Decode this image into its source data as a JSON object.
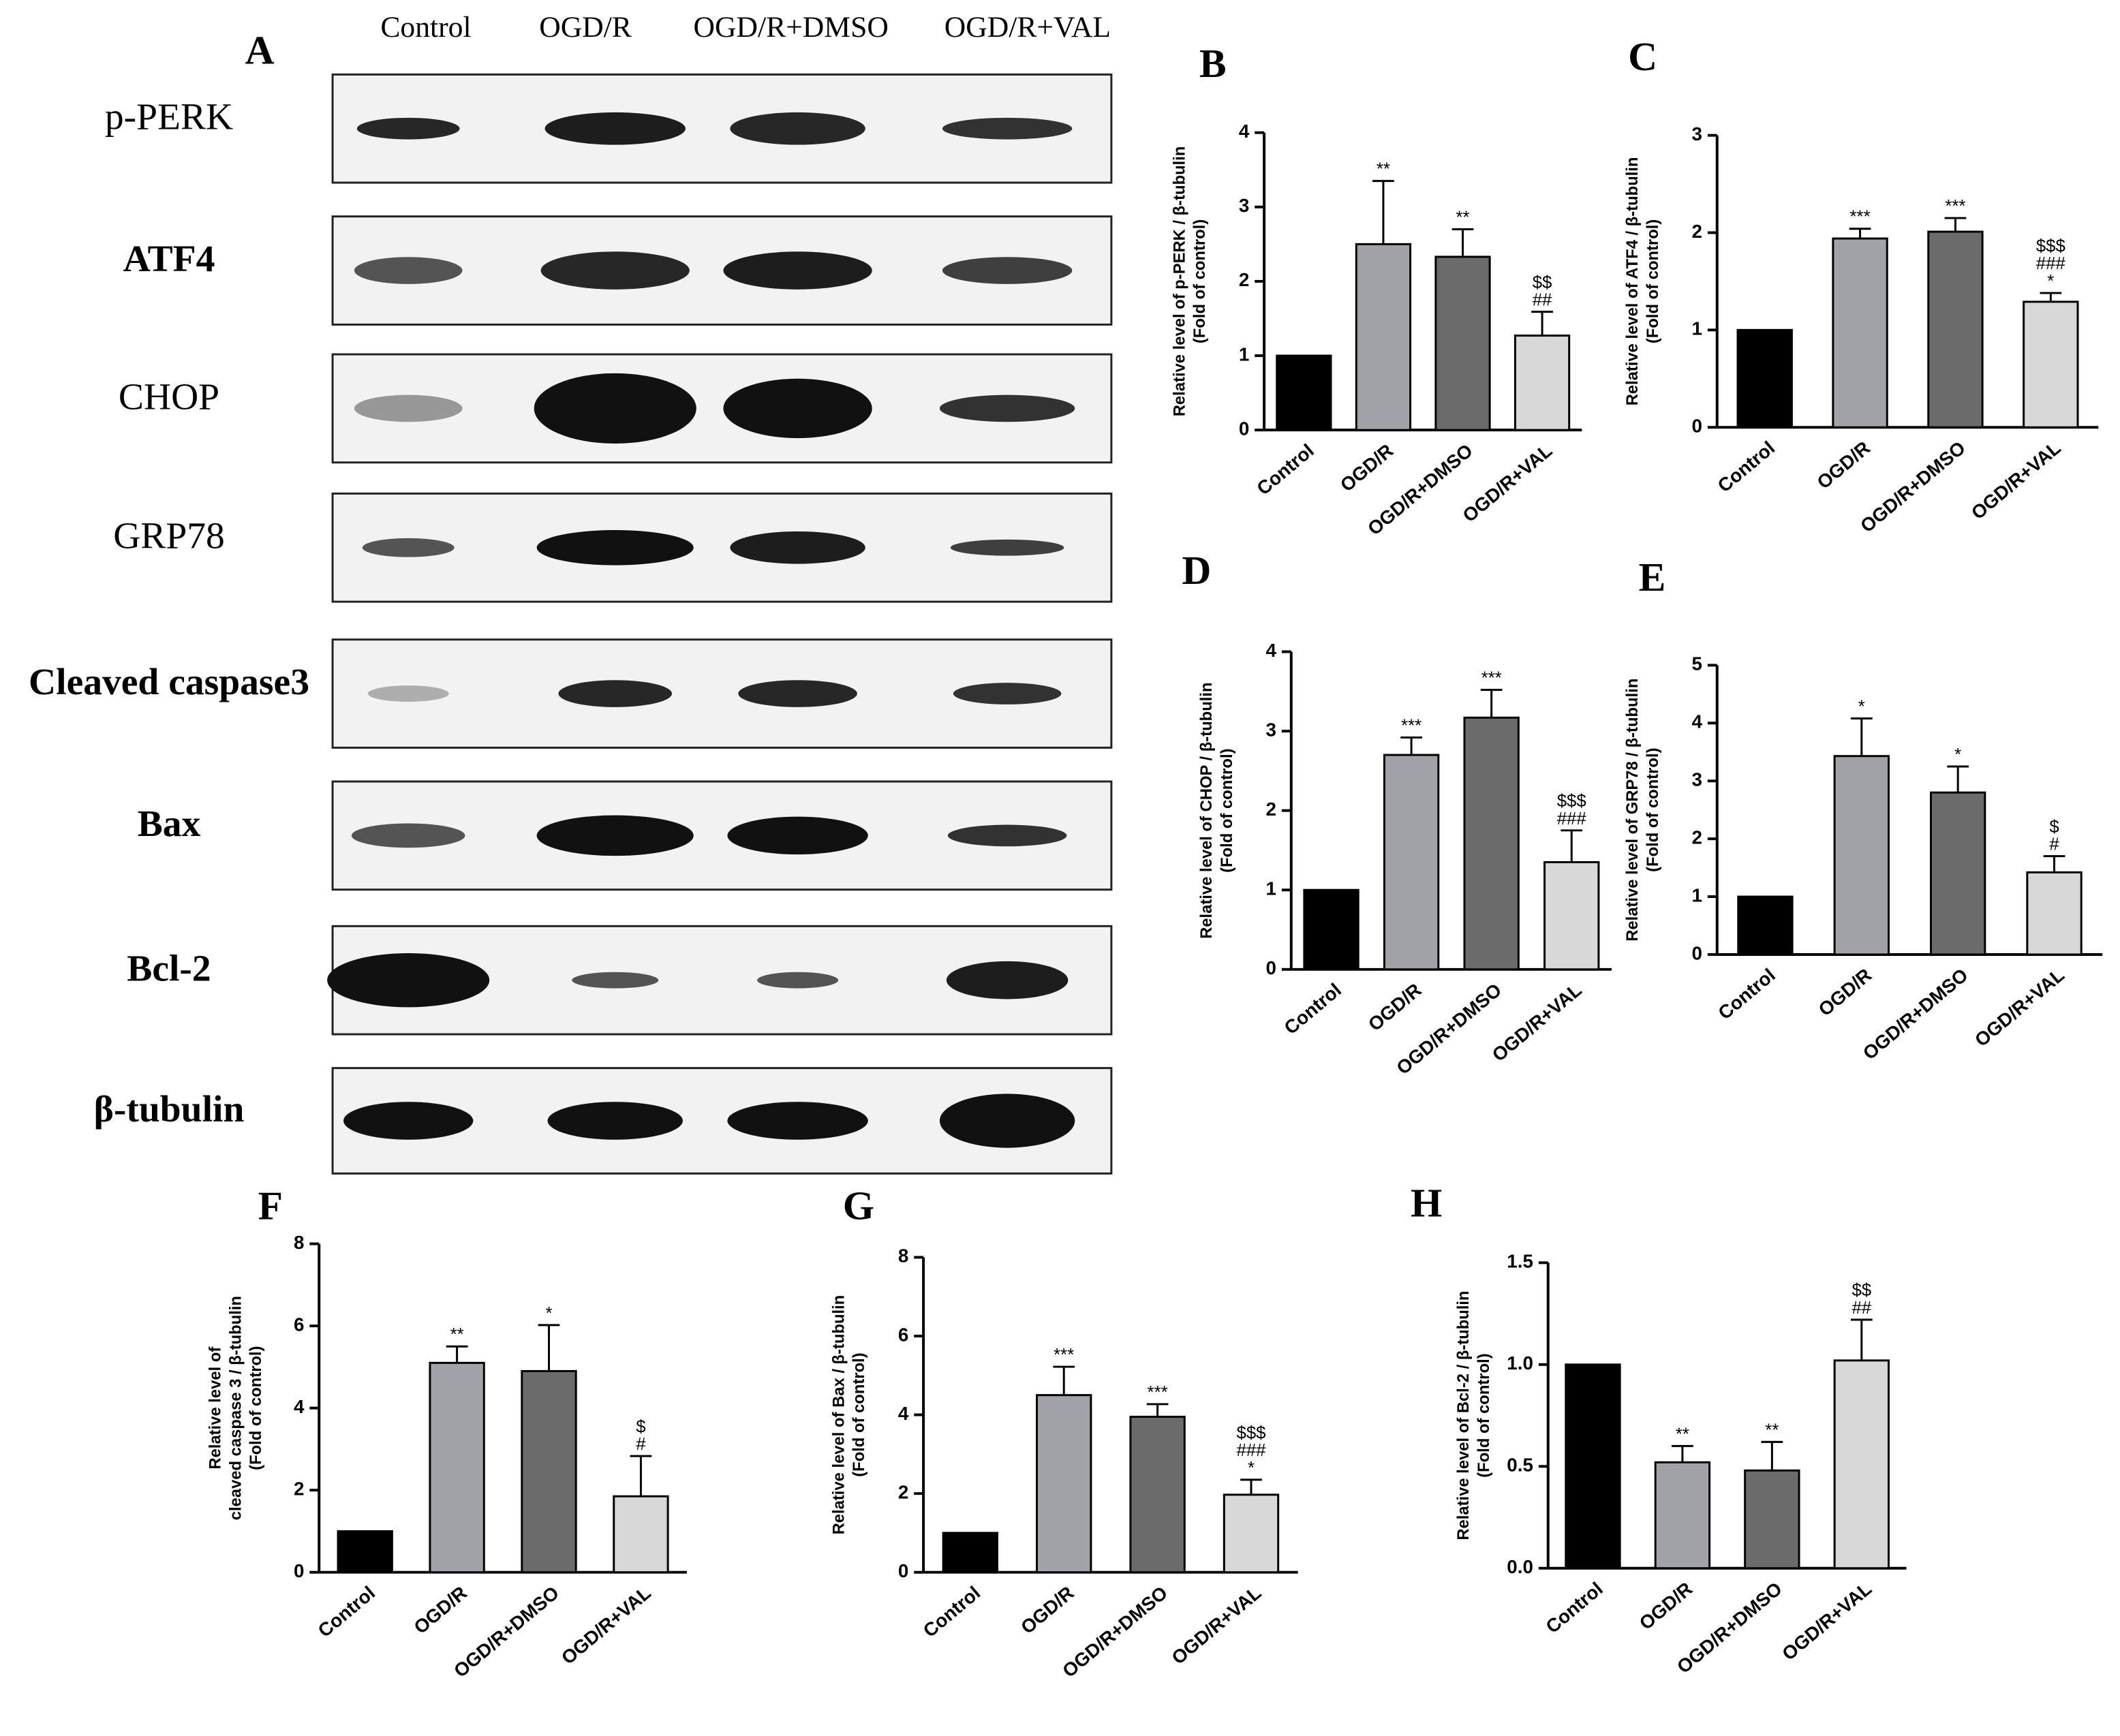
{
  "blot": {
    "panel_label": "A",
    "lanes": [
      "Control",
      "OGD/R",
      "OGD/R+DMSO",
      "OGD/R+VAL"
    ],
    "proteins": [
      "p-PERK",
      "ATF4",
      "CHOP",
      "GRP78",
      "Cleaved caspase3",
      "Bax",
      "Bcl-2",
      "β-tubulin"
    ]
  },
  "chart_data": [
    {
      "type": "bar",
      "panel_label": "B",
      "ylabel": [
        "Relative level of p-PERK / β-tubulin",
        "(Fold of control)"
      ],
      "categories": [
        "Control",
        "OGD/R",
        "OGD/R+DMSO",
        "OGD/R+VAL"
      ],
      "values": [
        1,
        2.5,
        2.33,
        1.27
      ],
      "errors": [
        0,
        0.85,
        0.37,
        0.32
      ],
      "annotations": [
        [],
        [
          "**"
        ],
        [
          "**"
        ],
        [
          "$$",
          "##"
        ]
      ],
      "colors": [
        "#000000",
        "#a1a3a8",
        "#6b6b6b",
        "#d8d8d8"
      ],
      "ylim": [
        0,
        4
      ],
      "yticks": [
        0,
        1,
        2,
        3,
        4
      ]
    },
    {
      "type": "bar",
      "panel_label": "C",
      "ylabel": [
        "Relative level of ATF4 / β-tubulin",
        "(Fold of control)"
      ],
      "categories": [
        "Control",
        "OGD/R",
        "OGD/R+DMSO",
        "OGD/R+VAL"
      ],
      "values": [
        1,
        1.94,
        2.01,
        1.29
      ],
      "errors": [
        0,
        0.1,
        0.14,
        0.09
      ],
      "annotations": [
        [],
        [
          "***"
        ],
        [
          "***"
        ],
        [
          "$$$",
          "###",
          "*"
        ]
      ],
      "colors": [
        "#000000",
        "#a1a3a8",
        "#6b6b6b",
        "#d8d8d8"
      ],
      "ylim": [
        0,
        3
      ],
      "yticks": [
        0,
        1,
        2,
        3
      ]
    },
    {
      "type": "bar",
      "panel_label": "D",
      "ylabel": [
        "Relative level of CHOP / β-tubulin",
        "(Fold of control)"
      ],
      "categories": [
        "Control",
        "OGD/R",
        "OGD/R+DMSO",
        "OGD/R+VAL"
      ],
      "values": [
        1,
        2.7,
        3.17,
        1.35
      ],
      "errors": [
        0,
        0.22,
        0.35,
        0.4
      ],
      "annotations": [
        [],
        [
          "***"
        ],
        [
          "***"
        ],
        [
          "$$$",
          "###"
        ]
      ],
      "colors": [
        "#000000",
        "#a1a3a8",
        "#6b6b6b",
        "#d8d8d8"
      ],
      "ylim": [
        0,
        4
      ],
      "yticks": [
        0,
        1,
        2,
        3,
        4
      ]
    },
    {
      "type": "bar",
      "panel_label": "E",
      "ylabel": [
        "Relative level of GRP78 / β-tubulin",
        "(Fold of control)"
      ],
      "categories": [
        "Control",
        "OGD/R",
        "OGD/R+DMSO",
        "OGD/R+VAL"
      ],
      "values": [
        1,
        3.43,
        2.8,
        1.42
      ],
      "errors": [
        0,
        0.65,
        0.45,
        0.28
      ],
      "annotations": [
        [],
        [
          "*"
        ],
        [
          "*"
        ],
        [
          "$",
          "#"
        ]
      ],
      "colors": [
        "#000000",
        "#a1a3a8",
        "#6b6b6b",
        "#d8d8d8"
      ],
      "ylim": [
        0,
        5
      ],
      "yticks": [
        0,
        1,
        2,
        3,
        4,
        5
      ]
    },
    {
      "type": "bar",
      "panel_label": "F",
      "ylabel": [
        "Relative level of",
        "cleaved caspase 3 / β-tubulin",
        "(Fold of control)"
      ],
      "categories": [
        "Control",
        "OGD/R",
        "OGD/R+DMSO",
        "OGD/R+VAL"
      ],
      "values": [
        1,
        5.1,
        4.9,
        1.85
      ],
      "errors": [
        0,
        0.4,
        1.12,
        0.98
      ],
      "annotations": [
        [],
        [
          "**"
        ],
        [
          "*"
        ],
        [
          "$",
          "#"
        ]
      ],
      "colors": [
        "#000000",
        "#a1a3a8",
        "#6b6b6b",
        "#d8d8d8"
      ],
      "ylim": [
        0,
        8
      ],
      "yticks": [
        0,
        2,
        4,
        6,
        8
      ]
    },
    {
      "type": "bar",
      "panel_label": "G",
      "ylabel": [
        "Relative level of Bax / β-tubulin",
        "(Fold of control)"
      ],
      "categories": [
        "Control",
        "OGD/R",
        "OGD/R+DMSO",
        "OGD/R+VAL"
      ],
      "values": [
        1,
        4.5,
        3.95,
        1.97
      ],
      "errors": [
        0,
        0.72,
        0.32,
        0.38
      ],
      "annotations": [
        [],
        [
          "***"
        ],
        [
          "***"
        ],
        [
          "$$$",
          "###",
          "*"
        ]
      ],
      "colors": [
        "#000000",
        "#a1a3a8",
        "#6b6b6b",
        "#d8d8d8"
      ],
      "ylim": [
        0,
        8
      ],
      "yticks": [
        0,
        2,
        4,
        6,
        8
      ]
    },
    {
      "type": "bar",
      "panel_label": "H",
      "ylabel": [
        "Relative level of Bcl-2 / β-tubulin",
        "(Fold of control)"
      ],
      "categories": [
        "Control",
        "OGD/R",
        "OGD/R+DMSO",
        "OGD/R+VAL"
      ],
      "values": [
        1,
        0.52,
        0.48,
        1.02
      ],
      "errors": [
        0,
        0.08,
        0.14,
        0.2
      ],
      "annotations": [
        [],
        [
          "**"
        ],
        [
          "**"
        ],
        [
          "$$",
          "##"
        ]
      ],
      "colors": [
        "#000000",
        "#a1a3a8",
        "#6b6b6b",
        "#d8d8d8"
      ],
      "ylim": [
        0,
        1.5
      ],
      "yticks": [
        {
          "value": 0,
          "label": "0.0"
        },
        {
          "value": 0.5,
          "label": "0.5"
        },
        {
          "value": 1,
          "label": "1.0"
        },
        {
          "value": 1.5,
          "label": "1.5"
        }
      ]
    }
  ]
}
